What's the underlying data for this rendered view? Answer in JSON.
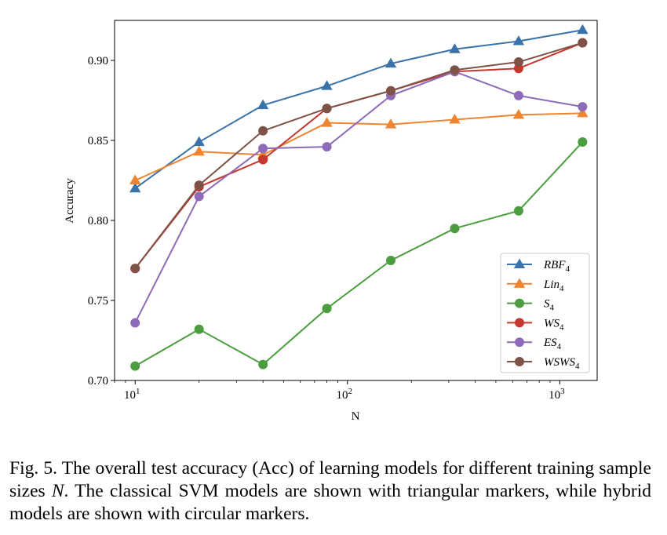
{
  "chart_data": {
    "type": "line",
    "xscale": "log",
    "x": [
      10,
      20,
      40,
      80,
      160,
      320,
      640,
      1280
    ],
    "xlim": [
      8,
      1500
    ],
    "ylim": [
      0.7,
      0.925
    ],
    "xlabel": "N",
    "ylabel": "Accuracy",
    "yticks": [
      0.7,
      0.75,
      0.8,
      0.85,
      0.9
    ],
    "ytick_labels": [
      "0.70",
      "0.75",
      "0.80",
      "0.85",
      "0.90"
    ],
    "xticks": [
      10,
      100,
      1000
    ],
    "xtick_labels": [
      {
        "base": "10",
        "exp": "1"
      },
      {
        "base": "10",
        "exp": "2"
      },
      {
        "base": "10",
        "exp": "3"
      }
    ],
    "grid": false,
    "legend_position": "lower-right",
    "series": [
      {
        "name": "RBF",
        "sub": "4",
        "marker": "triangle",
        "color": "#3a73a9",
        "values": [
          0.82,
          0.849,
          0.872,
          0.884,
          0.898,
          0.907,
          0.912,
          0.919
        ]
      },
      {
        "name": "Lin",
        "sub": "4",
        "marker": "triangle",
        "color": "#ef8431",
        "values": [
          0.825,
          0.843,
          0.841,
          0.861,
          0.86,
          0.863,
          0.866,
          0.867
        ]
      },
      {
        "name": "S",
        "sub": "4",
        "marker": "circle",
        "color": "#4c9d3f",
        "values": [
          0.709,
          0.732,
          0.71,
          0.745,
          0.775,
          0.795,
          0.806,
          0.849
        ]
      },
      {
        "name": "WS",
        "sub": "4",
        "marker": "circle",
        "color": "#c6372f",
        "values": [
          0.77,
          0.821,
          0.838,
          0.87,
          0.881,
          0.893,
          0.895,
          0.911
        ]
      },
      {
        "name": "ES",
        "sub": "4",
        "marker": "circle",
        "color": "#8e6bb8",
        "values": [
          0.736,
          0.815,
          0.845,
          0.846,
          0.878,
          0.893,
          0.878,
          0.871
        ]
      },
      {
        "name": "WSWS",
        "sub": "4",
        "marker": "circle",
        "color": "#7f5248",
        "values": [
          0.77,
          0.822,
          0.856,
          0.87,
          0.881,
          0.894,
          0.899,
          0.911
        ]
      }
    ]
  },
  "caption": {
    "prefix": "Fig. 5.  The overall test accuracy (Acc) of learning models for different training sample sizes ",
    "var": "N",
    "suffix": ". The classical SVM models are shown with triangular markers, while hybrid models are shown with circular markers."
  }
}
